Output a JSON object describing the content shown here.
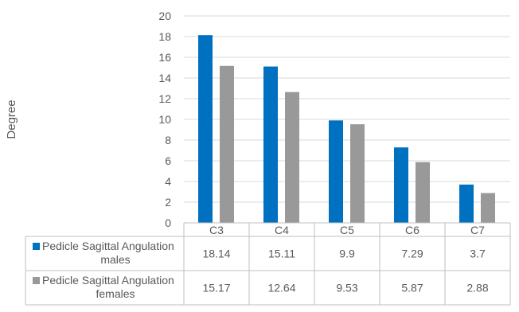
{
  "chart_data": {
    "type": "bar",
    "ylabel": "Degree",
    "ylim": [
      0,
      20
    ],
    "ytick_step": 2,
    "grid": true,
    "legend": "table-left",
    "categories": [
      "C3",
      "C4",
      "C5",
      "C6",
      "C7"
    ],
    "series": [
      {
        "name_lines": [
          "Pedicle Sagittal Angulation",
          "males"
        ],
        "color": "#0070C0",
        "values": [
          18.14,
          15.11,
          9.9,
          7.29,
          3.7
        ],
        "labels": [
          "18.14",
          "15.11",
          "9.9",
          "7.29",
          "3.7"
        ]
      },
      {
        "name_lines": [
          "Pedicle Sagittal Angulation",
          "females"
        ],
        "color": "#999999",
        "values": [
          15.17,
          12.64,
          9.53,
          5.87,
          2.88
        ],
        "labels": [
          "15.17",
          "12.64",
          "9.53",
          "5.87",
          "2.88"
        ]
      }
    ]
  }
}
